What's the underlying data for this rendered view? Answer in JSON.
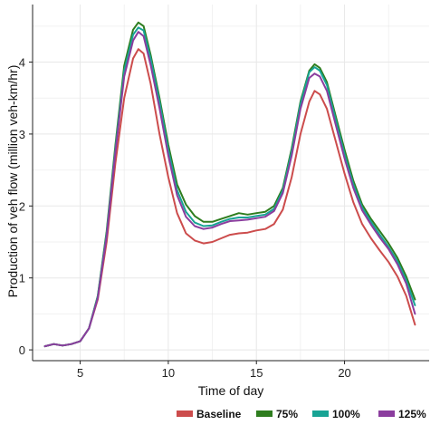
{
  "chart_data": {
    "type": "line",
    "xlabel": "Time of day",
    "ylabel": "Production of veh flow (million veh-km/hr)",
    "xlim": [
      2.3,
      24.8
    ],
    "ylim": [
      -0.15,
      4.8
    ],
    "x_ticks": [
      5,
      10,
      15,
      20
    ],
    "y_ticks": [
      0,
      1,
      2,
      3,
      4
    ],
    "grid": true,
    "legend_position": "bottom-right",
    "series": [
      {
        "name": "Baseline",
        "color": "#cc4c4c",
        "points": [
          [
            3,
            0.05
          ],
          [
            3.5,
            0.08
          ],
          [
            4,
            0.06
          ],
          [
            4.5,
            0.08
          ],
          [
            5,
            0.12
          ],
          [
            5.5,
            0.3
          ],
          [
            6,
            0.7
          ],
          [
            6.5,
            1.5
          ],
          [
            7,
            2.6
          ],
          [
            7.5,
            3.5
          ],
          [
            8,
            4.05
          ],
          [
            8.3,
            4.18
          ],
          [
            8.6,
            4.12
          ],
          [
            9,
            3.7
          ],
          [
            9.5,
            3.0
          ],
          [
            10,
            2.4
          ],
          [
            10.5,
            1.9
          ],
          [
            11,
            1.62
          ],
          [
            11.5,
            1.52
          ],
          [
            12,
            1.48
          ],
          [
            12.5,
            1.5
          ],
          [
            13,
            1.55
          ],
          [
            13.5,
            1.6
          ],
          [
            14,
            1.62
          ],
          [
            14.5,
            1.63
          ],
          [
            15,
            1.66
          ],
          [
            15.5,
            1.68
          ],
          [
            16,
            1.75
          ],
          [
            16.5,
            1.95
          ],
          [
            17,
            2.4
          ],
          [
            17.5,
            3.0
          ],
          [
            18,
            3.45
          ],
          [
            18.3,
            3.6
          ],
          [
            18.6,
            3.55
          ],
          [
            19,
            3.35
          ],
          [
            19.5,
            2.9
          ],
          [
            20,
            2.45
          ],
          [
            20.5,
            2.05
          ],
          [
            21,
            1.75
          ],
          [
            21.5,
            1.55
          ],
          [
            22,
            1.38
          ],
          [
            22.5,
            1.22
          ],
          [
            23,
            1.02
          ],
          [
            23.5,
            0.75
          ],
          [
            24,
            0.35
          ]
        ]
      },
      {
        "name": "75%",
        "color": "#2e7d1e",
        "points": [
          [
            3,
            0.05
          ],
          [
            3.5,
            0.08
          ],
          [
            4,
            0.06
          ],
          [
            4.5,
            0.08
          ],
          [
            5,
            0.12
          ],
          [
            5.5,
            0.3
          ],
          [
            6,
            0.75
          ],
          [
            6.5,
            1.65
          ],
          [
            7,
            2.85
          ],
          [
            7.5,
            3.95
          ],
          [
            8,
            4.45
          ],
          [
            8.3,
            4.55
          ],
          [
            8.6,
            4.5
          ],
          [
            9,
            4.1
          ],
          [
            9.5,
            3.5
          ],
          [
            10,
            2.85
          ],
          [
            10.5,
            2.3
          ],
          [
            11,
            2.02
          ],
          [
            11.5,
            1.86
          ],
          [
            12,
            1.78
          ],
          [
            12.5,
            1.78
          ],
          [
            13,
            1.82
          ],
          [
            13.5,
            1.86
          ],
          [
            14,
            1.9
          ],
          [
            14.5,
            1.88
          ],
          [
            15,
            1.9
          ],
          [
            15.5,
            1.92
          ],
          [
            16,
            2.0
          ],
          [
            16.5,
            2.25
          ],
          [
            17,
            2.8
          ],
          [
            17.5,
            3.45
          ],
          [
            18,
            3.88
          ],
          [
            18.3,
            3.97
          ],
          [
            18.6,
            3.92
          ],
          [
            19,
            3.72
          ],
          [
            19.5,
            3.25
          ],
          [
            20,
            2.78
          ],
          [
            20.5,
            2.35
          ],
          [
            21,
            2.02
          ],
          [
            21.5,
            1.82
          ],
          [
            22,
            1.65
          ],
          [
            22.5,
            1.48
          ],
          [
            23,
            1.28
          ],
          [
            23.5,
            1.02
          ],
          [
            24,
            0.7
          ]
        ]
      },
      {
        "name": "100%",
        "color": "#17a394",
        "points": [
          [
            3,
            0.05
          ],
          [
            3.5,
            0.08
          ],
          [
            4,
            0.06
          ],
          [
            4.5,
            0.08
          ],
          [
            5,
            0.12
          ],
          [
            5.5,
            0.3
          ],
          [
            6,
            0.74
          ],
          [
            6.5,
            1.62
          ],
          [
            7,
            2.8
          ],
          [
            7.5,
            3.88
          ],
          [
            8,
            4.38
          ],
          [
            8.3,
            4.48
          ],
          [
            8.6,
            4.44
          ],
          [
            9,
            4.05
          ],
          [
            9.5,
            3.45
          ],
          [
            10,
            2.78
          ],
          [
            10.5,
            2.22
          ],
          [
            11,
            1.92
          ],
          [
            11.5,
            1.77
          ],
          [
            12,
            1.72
          ],
          [
            12.5,
            1.73
          ],
          [
            13,
            1.78
          ],
          [
            13.5,
            1.82
          ],
          [
            14,
            1.84
          ],
          [
            14.5,
            1.84
          ],
          [
            15,
            1.86
          ],
          [
            15.5,
            1.88
          ],
          [
            16,
            1.96
          ],
          [
            16.5,
            2.22
          ],
          [
            17,
            2.76
          ],
          [
            17.5,
            3.42
          ],
          [
            18,
            3.86
          ],
          [
            18.3,
            3.93
          ],
          [
            18.6,
            3.88
          ],
          [
            19,
            3.68
          ],
          [
            19.5,
            3.2
          ],
          [
            20,
            2.72
          ],
          [
            20.5,
            2.3
          ],
          [
            21,
            1.98
          ],
          [
            21.5,
            1.78
          ],
          [
            22,
            1.6
          ],
          [
            22.5,
            1.43
          ],
          [
            23,
            1.23
          ],
          [
            23.5,
            0.97
          ],
          [
            24,
            0.62
          ]
        ]
      },
      {
        "name": "125%",
        "color": "#8b3d9e",
        "points": [
          [
            3,
            0.05
          ],
          [
            3.5,
            0.08
          ],
          [
            4,
            0.06
          ],
          [
            4.5,
            0.08
          ],
          [
            5,
            0.12
          ],
          [
            5.5,
            0.3
          ],
          [
            6,
            0.72
          ],
          [
            6.5,
            1.58
          ],
          [
            7,
            2.75
          ],
          [
            7.5,
            3.8
          ],
          [
            8,
            4.3
          ],
          [
            8.3,
            4.42
          ],
          [
            8.6,
            4.36
          ],
          [
            9,
            3.96
          ],
          [
            9.5,
            3.36
          ],
          [
            10,
            2.7
          ],
          [
            10.5,
            2.15
          ],
          [
            11,
            1.85
          ],
          [
            11.5,
            1.72
          ],
          [
            12,
            1.68
          ],
          [
            12.5,
            1.7
          ],
          [
            13,
            1.75
          ],
          [
            13.5,
            1.79
          ],
          [
            14,
            1.8
          ],
          [
            14.5,
            1.81
          ],
          [
            15,
            1.83
          ],
          [
            15.5,
            1.85
          ],
          [
            16,
            1.93
          ],
          [
            16.5,
            2.18
          ],
          [
            17,
            2.7
          ],
          [
            17.5,
            3.35
          ],
          [
            18,
            3.78
          ],
          [
            18.3,
            3.84
          ],
          [
            18.6,
            3.8
          ],
          [
            19,
            3.6
          ],
          [
            19.5,
            3.13
          ],
          [
            20,
            2.66
          ],
          [
            20.5,
            2.25
          ],
          [
            21,
            1.94
          ],
          [
            21.5,
            1.74
          ],
          [
            22,
            1.56
          ],
          [
            22.5,
            1.4
          ],
          [
            23,
            1.19
          ],
          [
            23.5,
            0.92
          ],
          [
            24,
            0.5
          ]
        ]
      }
    ]
  }
}
